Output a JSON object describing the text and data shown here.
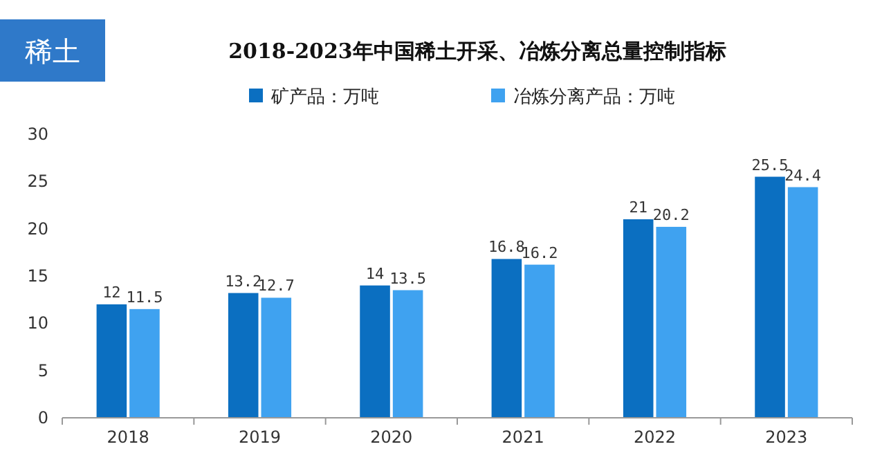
{
  "chart_data": {
    "type": "bar",
    "title": "2018-2023年中国稀土开采、冶炼分离总量控制指标",
    "annotations": [
      "稀土"
    ],
    "categories": [
      "2018",
      "2019",
      "2020",
      "2021",
      "2022",
      "2023"
    ],
    "series": [
      {
        "name": "矿产品：万吨",
        "color": "#0b6fc1",
        "values": [
          12,
          13.2,
          14,
          16.8,
          21,
          25.5
        ]
      },
      {
        "name": "冶炼分离产品：万吨",
        "color": "#3fa2f0",
        "values": [
          11.5,
          12.7,
          13.5,
          16.2,
          20.2,
          24.4
        ]
      }
    ],
    "ylim": [
      0,
      30
    ],
    "yticks": [
      0,
      5,
      10,
      15,
      20,
      25,
      30
    ],
    "grid": false,
    "legend": "top",
    "data_labels": true
  }
}
